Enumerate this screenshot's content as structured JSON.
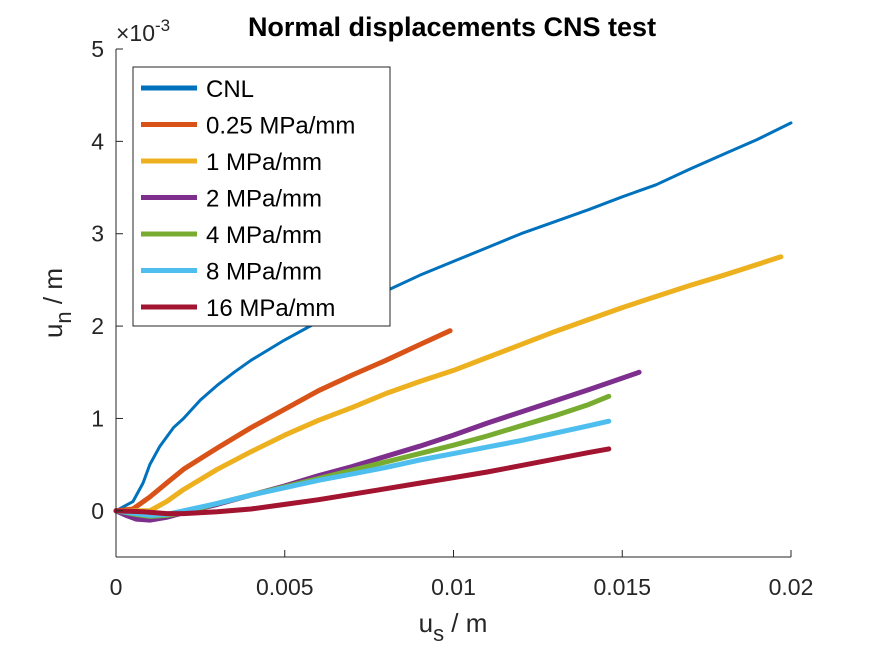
{
  "chart_data": {
    "type": "line",
    "title": "Normal displacements CNS test",
    "xlabel": "u",
    "xlabel_sub": "s",
    "xlabel_unit": " / m",
    "ylabel": "u",
    "ylabel_sub": "n",
    "ylabel_unit": " / m",
    "y_multiplier": "×10",
    "y_exponent": "-3",
    "xlim": [
      0,
      0.02
    ],
    "ylim": [
      -0.5,
      5
    ],
    "xticks": [
      "0",
      "0.005",
      "0.01",
      "0.015",
      "0.02"
    ],
    "xtick_values": [
      0,
      0.005,
      0.01,
      0.015,
      0.02
    ],
    "yticks": [
      "0",
      "1",
      "2",
      "3",
      "4",
      "5"
    ],
    "ytick_values": [
      0,
      1,
      2,
      3,
      4,
      5
    ],
    "grid": false,
    "legend_position": "top-left",
    "series": [
      {
        "name": "CNL",
        "color": "#0072BD",
        "x": [
          0,
          0.0005,
          0.0008,
          0.001,
          0.0013,
          0.0017,
          0.002,
          0.0025,
          0.003,
          0.0035,
          0.004,
          0.005,
          0.006,
          0.007,
          0.008,
          0.009,
          0.01,
          0.011,
          0.012,
          0.013,
          0.014,
          0.015,
          0.016,
          0.017,
          0.018,
          0.019,
          0.02
        ],
        "y": [
          0,
          0.1,
          0.3,
          0.5,
          0.7,
          0.9,
          1.0,
          1.2,
          1.36,
          1.5,
          1.63,
          1.85,
          2.05,
          2.22,
          2.38,
          2.55,
          2.7,
          2.85,
          3.0,
          3.13,
          3.26,
          3.4,
          3.53,
          3.7,
          3.86,
          4.02,
          4.2
        ]
      },
      {
        "name": "0.25 MPa/mm",
        "color": "#D95319",
        "x": [
          0,
          0.0005,
          0.001,
          0.0015,
          0.002,
          0.003,
          0.004,
          0.005,
          0.006,
          0.007,
          0.008,
          0.009,
          0.0099
        ],
        "y": [
          0,
          0.02,
          0.15,
          0.3,
          0.45,
          0.68,
          0.9,
          1.1,
          1.3,
          1.47,
          1.63,
          1.8,
          1.95
        ]
      },
      {
        "name": "1 MPa/mm",
        "color": "#EDB120",
        "x": [
          0,
          0.001,
          0.0015,
          0.002,
          0.003,
          0.004,
          0.005,
          0.006,
          0.007,
          0.008,
          0.009,
          0.01,
          0.011,
          0.012,
          0.013,
          0.014,
          0.015,
          0.016,
          0.017,
          0.018,
          0.0197
        ],
        "y": [
          0,
          0.0,
          0.1,
          0.23,
          0.45,
          0.64,
          0.82,
          0.98,
          1.12,
          1.27,
          1.4,
          1.52,
          1.66,
          1.8,
          1.94,
          2.07,
          2.2,
          2.32,
          2.44,
          2.55,
          2.75
        ]
      },
      {
        "name": "2 MPa/mm",
        "color": "#7E2F8E",
        "x": [
          0,
          0.0003,
          0.0006,
          0.001,
          0.0015,
          0.002,
          0.003,
          0.004,
          0.005,
          0.006,
          0.007,
          0.008,
          0.009,
          0.01,
          0.011,
          0.012,
          0.013,
          0.014,
          0.0155
        ],
        "y": [
          0,
          -0.05,
          -0.09,
          -0.1,
          -0.07,
          -0.02,
          0.07,
          0.17,
          0.27,
          0.38,
          0.48,
          0.59,
          0.7,
          0.82,
          0.95,
          1.07,
          1.19,
          1.31,
          1.5
        ]
      },
      {
        "name": "4 MPa/mm",
        "color": "#77AC30",
        "x": [
          0,
          0.0006,
          0.001,
          0.0015,
          0.002,
          0.003,
          0.004,
          0.005,
          0.006,
          0.007,
          0.008,
          0.009,
          0.01,
          0.011,
          0.012,
          0.013,
          0.014,
          0.0146
        ],
        "y": [
          0,
          -0.04,
          -0.06,
          -0.05,
          -0.02,
          0.08,
          0.17,
          0.26,
          0.35,
          0.44,
          0.53,
          0.62,
          0.71,
          0.81,
          0.92,
          1.03,
          1.15,
          1.24
        ]
      },
      {
        "name": "8 MPa/mm",
        "color": "#4DBEEE",
        "x": [
          0,
          0.0006,
          0.001,
          0.0015,
          0.002,
          0.003,
          0.004,
          0.005,
          0.006,
          0.007,
          0.008,
          0.009,
          0.01,
          0.011,
          0.012,
          0.013,
          0.014,
          0.0146
        ],
        "y": [
          0,
          -0.03,
          -0.05,
          -0.04,
          0.0,
          0.08,
          0.17,
          0.25,
          0.33,
          0.4,
          0.47,
          0.55,
          0.62,
          0.69,
          0.76,
          0.84,
          0.92,
          0.97
        ]
      },
      {
        "name": "16 MPa/mm",
        "color": "#A2142F",
        "x": [
          0,
          0.0008,
          0.0015,
          0.002,
          0.003,
          0.004,
          0.005,
          0.006,
          0.007,
          0.008,
          0.009,
          0.01,
          0.011,
          0.012,
          0.013,
          0.014,
          0.0146
        ],
        "y": [
          0,
          -0.01,
          -0.03,
          -0.03,
          -0.01,
          0.02,
          0.07,
          0.12,
          0.18,
          0.24,
          0.3,
          0.36,
          0.42,
          0.49,
          0.56,
          0.63,
          0.67
        ]
      }
    ]
  }
}
